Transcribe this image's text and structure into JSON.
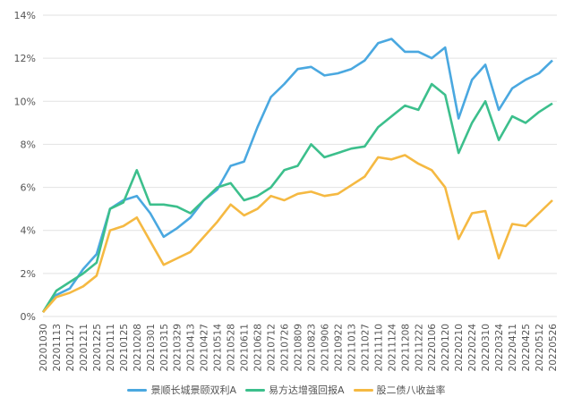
{
  "chart_data": {
    "type": "line",
    "title": "",
    "xlabel": "",
    "ylabel": "",
    "ylim": [
      0,
      14
    ],
    "yticks": [
      "0%",
      "2%",
      "4%",
      "6%",
      "8%",
      "10%",
      "12%",
      "14%"
    ],
    "grid": true,
    "legend_position": "bottom",
    "x": [
      "20201030",
      "20201113",
      "20201127",
      "20201211",
      "20201225",
      "20210111",
      "20210125",
      "20210208",
      "20210301",
      "20210315",
      "20210329",
      "20210413",
      "20210427",
      "20210514",
      "20210528",
      "20210611",
      "20210628",
      "20210712",
      "20210726",
      "20210809",
      "20210823",
      "20210906",
      "20210922",
      "20211013",
      "20211027",
      "20211110",
      "20211124",
      "20211208",
      "20211222",
      "20220106",
      "20220120",
      "20220210",
      "20220224",
      "20220310",
      "20220324",
      "20220411",
      "20220425",
      "20220512",
      "20220526"
    ],
    "series": [
      {
        "name": "景顺长城景颐双利A",
        "color": "#4aa8e0",
        "values": [
          0.2,
          1.0,
          1.3,
          2.2,
          2.9,
          5.0,
          5.4,
          5.6,
          4.8,
          3.7,
          4.1,
          4.6,
          5.4,
          5.9,
          7.0,
          7.2,
          8.8,
          10.2,
          10.8,
          11.5,
          11.6,
          11.2,
          11.3,
          11.5,
          11.9,
          12.7,
          12.9,
          12.3,
          12.3,
          12.0,
          12.5,
          9.2,
          11.0,
          11.7,
          9.6,
          10.6,
          11.0,
          11.3,
          11.9
        ]
      },
      {
        "name": "易方达增强回报A",
        "color": "#3cbf8c",
        "values": [
          0.2,
          1.2,
          1.6,
          2.0,
          2.5,
          5.0,
          5.3,
          6.8,
          5.2,
          5.2,
          5.1,
          4.8,
          5.4,
          6.0,
          6.2,
          5.4,
          5.6,
          6.0,
          6.8,
          7.0,
          8.0,
          7.4,
          7.6,
          7.8,
          7.9,
          8.8,
          9.3,
          9.8,
          9.6,
          10.8,
          10.3,
          7.6,
          9.0,
          10.0,
          8.2,
          9.3,
          9.0,
          9.5,
          9.9
        ]
      },
      {
        "name": "股二债八收益率",
        "color": "#f5b942",
        "values": [
          0.2,
          0.9,
          1.1,
          1.4,
          1.9,
          4.0,
          4.2,
          4.6,
          3.5,
          2.4,
          2.7,
          3.0,
          3.7,
          4.4,
          5.2,
          4.7,
          5.0,
          5.6,
          5.4,
          5.7,
          5.8,
          5.6,
          5.7,
          6.1,
          6.5,
          7.4,
          7.3,
          7.5,
          7.1,
          6.8,
          6.0,
          3.6,
          4.8,
          4.9,
          2.7,
          4.3,
          4.2,
          4.8,
          5.4
        ]
      }
    ]
  }
}
